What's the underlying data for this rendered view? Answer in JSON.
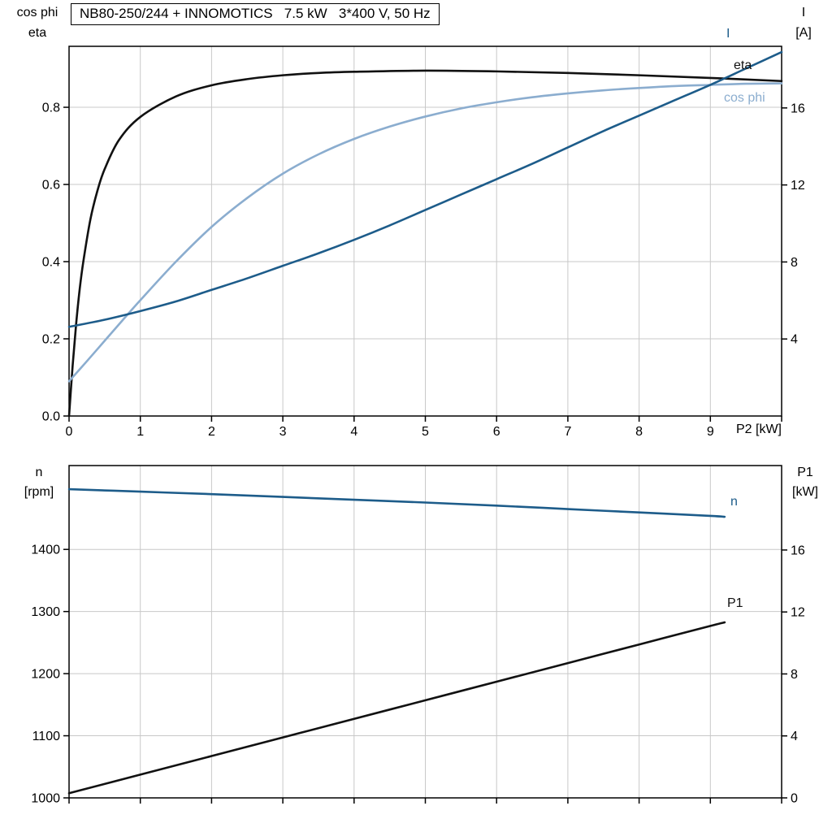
{
  "page": {
    "background": "#ffffff"
  },
  "colors": {
    "axis": "#000000",
    "grid": "#c8c8c8",
    "black_series": "#111111",
    "dark_blue_series": "#1d5c8a",
    "light_blue_series": "#8badcf"
  },
  "chart_data": [
    {
      "type": "line",
      "title": "NB80-250/244 + INNOMOTICS   7.5 kW   3*400 V, 50 Hz",
      "x_label": "P2 [kW]",
      "x_range": [
        0,
        10
      ],
      "x_ticks": [
        0,
        1,
        2,
        3,
        4,
        5,
        6,
        7,
        8,
        9,
        10
      ],
      "x_tick_labels": [
        "0",
        "1",
        "2",
        "3",
        "4",
        "5",
        "6",
        "7",
        "8",
        "9",
        ""
      ],
      "grid": true,
      "legend_position": "right-inline",
      "left_axis": {
        "title_lines": [
          "cos phi",
          "eta"
        ],
        "range": [
          0,
          0.958
        ],
        "ticks": [
          0,
          0.2,
          0.4,
          0.6,
          0.8
        ],
        "tick_labels": [
          "0.0",
          "0.2",
          "0.4",
          "0.6",
          "0.8"
        ]
      },
      "right_axis": {
        "title_lines": [
          "I",
          "[A]"
        ],
        "range": [
          0,
          19.2
        ],
        "ticks": [
          4,
          8,
          12,
          16
        ],
        "tick_labels": [
          "4",
          "8",
          "12",
          "16"
        ]
      },
      "series": [
        {
          "name": "eta",
          "label": "eta",
          "axis": "left",
          "color_key": "black_series",
          "points": [
            [
              0,
              0
            ],
            [
              0.05,
              0.13
            ],
            [
              0.1,
              0.24
            ],
            [
              0.15,
              0.33
            ],
            [
              0.2,
              0.4
            ],
            [
              0.3,
              0.51
            ],
            [
              0.4,
              0.585
            ],
            [
              0.5,
              0.64
            ],
            [
              0.7,
              0.715
            ],
            [
              1,
              0.775
            ],
            [
              1.5,
              0.828
            ],
            [
              2,
              0.857
            ],
            [
              2.5,
              0.873
            ],
            [
              3,
              0.883
            ],
            [
              3.5,
              0.889
            ],
            [
              4,
              0.892
            ],
            [
              5,
              0.895
            ],
            [
              6,
              0.893
            ],
            [
              7,
              0.889
            ],
            [
              8,
              0.883
            ],
            [
              9,
              0.876
            ],
            [
              10,
              0.868
            ]
          ]
        },
        {
          "name": "cos phi",
          "label": "cos phi",
          "axis": "left",
          "color_key": "light_blue_series",
          "points": [
            [
              0,
              0.09
            ],
            [
              0.25,
              0.142
            ],
            [
              0.5,
              0.195
            ],
            [
              0.75,
              0.248
            ],
            [
              1,
              0.3
            ],
            [
              1.5,
              0.4
            ],
            [
              2,
              0.49
            ],
            [
              2.5,
              0.565
            ],
            [
              3,
              0.628
            ],
            [
              3.5,
              0.678
            ],
            [
              4,
              0.718
            ],
            [
              4.5,
              0.75
            ],
            [
              5,
              0.776
            ],
            [
              5.5,
              0.797
            ],
            [
              6,
              0.813
            ],
            [
              6.5,
              0.826
            ],
            [
              7,
              0.836
            ],
            [
              7.5,
              0.844
            ],
            [
              8,
              0.85
            ],
            [
              8.5,
              0.855
            ],
            [
              9,
              0.858
            ],
            [
              9.5,
              0.861
            ],
            [
              10,
              0.862
            ]
          ]
        },
        {
          "name": "I",
          "label": "I",
          "axis": "right",
          "color_key": "dark_blue_series",
          "points": [
            [
              0,
              4.63
            ],
            [
              0.5,
              5.0
            ],
            [
              1,
              5.45
            ],
            [
              1.5,
              5.95
            ],
            [
              2,
              6.55
            ],
            [
              2.5,
              7.15
            ],
            [
              3,
              7.8
            ],
            [
              3.5,
              8.45
            ],
            [
              4,
              9.15
            ],
            [
              4.5,
              9.9
            ],
            [
              5,
              10.7
            ],
            [
              5.5,
              11.5
            ],
            [
              6,
              12.3
            ],
            [
              6.5,
              13.1
            ],
            [
              7,
              13.95
            ],
            [
              7.5,
              14.8
            ],
            [
              8,
              15.6
            ],
            [
              8.5,
              16.4
            ],
            [
              9,
              17.2
            ],
            [
              9.5,
              18.05
            ],
            [
              10,
              18.9
            ]
          ]
        }
      ]
    },
    {
      "type": "line",
      "title": "",
      "x_label": "",
      "x_range": [
        0,
        10
      ],
      "x_ticks": [
        0,
        1,
        2,
        3,
        4,
        5,
        6,
        7,
        8,
        9,
        10
      ],
      "x_tick_labels": [],
      "grid": true,
      "left_axis": {
        "title_lines": [
          "n",
          "[rpm]"
        ],
        "range": [
          1000,
          1535
        ],
        "ticks": [
          1000,
          1100,
          1200,
          1300,
          1400
        ],
        "tick_labels": [
          "1000",
          "1100",
          "1200",
          "1300",
          "1400"
        ]
      },
      "right_axis": {
        "title_lines": [
          "P1",
          "[kW]"
        ],
        "range": [
          0,
          21.45
        ],
        "ticks": [
          0,
          4,
          8,
          12,
          16
        ],
        "tick_labels": [
          "0",
          "4",
          "8",
          "12",
          "16"
        ]
      },
      "series": [
        {
          "name": "n",
          "label": "n",
          "axis": "left",
          "color_key": "dark_blue_series",
          "points": [
            [
              0,
              1497
            ],
            [
              1,
              1493
            ],
            [
              2,
              1489
            ],
            [
              3,
              1484.5
            ],
            [
              4,
              1480
            ],
            [
              5,
              1475.5
            ],
            [
              6,
              1470.5
            ],
            [
              7,
              1465
            ],
            [
              8,
              1459.5
            ],
            [
              9,
              1454
            ],
            [
              9.2,
              1452.5
            ]
          ]
        },
        {
          "name": "P1",
          "label": "P1",
          "axis": "right",
          "color_key": "black_series",
          "points": [
            [
              0,
              0.3
            ],
            [
              1,
              1.5
            ],
            [
              2,
              2.7
            ],
            [
              3,
              3.9
            ],
            [
              4,
              5.1
            ],
            [
              5,
              6.3
            ],
            [
              6,
              7.5
            ],
            [
              7,
              8.7
            ],
            [
              8,
              9.9
            ],
            [
              9,
              11.1
            ],
            [
              9.2,
              11.33
            ]
          ]
        }
      ]
    }
  ]
}
